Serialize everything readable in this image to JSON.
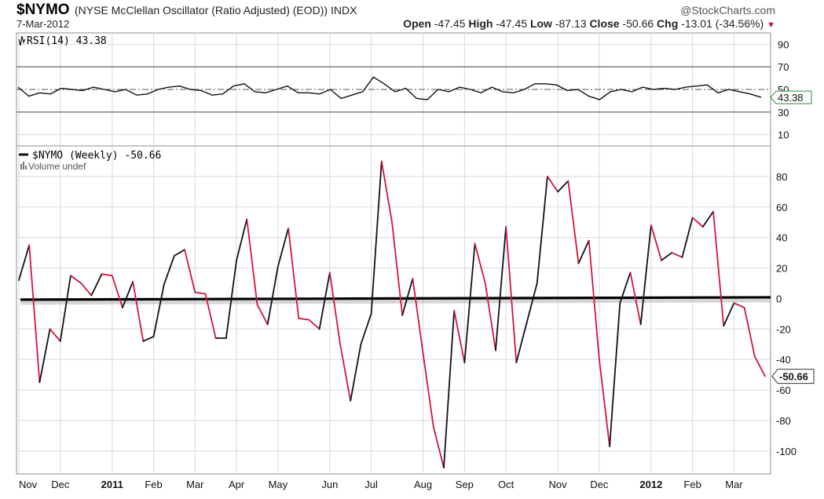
{
  "header": {
    "symbol": "$NYMO",
    "description": "(NYSE McClellan Oscillator (Ratio Adjusted) (EOD))",
    "exchange": "INDX",
    "source": "@StockCharts.com",
    "date": "7-Mar-2012",
    "open_label": "Open",
    "open": "-47.45",
    "high_label": "High",
    "high": "-47.45",
    "low_label": "Low",
    "low": "-87.13",
    "close_label": "Close",
    "close": "-50.66",
    "chg_label": "Chg",
    "chg": "-13.01 (-34.56%)",
    "chg_arrow": "▼"
  },
  "colors": {
    "up": "#111111",
    "down": "#d4143c",
    "grid": "#d8d8d8",
    "zero_line": "#000000",
    "rsi_line": "#111111",
    "rsi_bound": "#777777",
    "rsi_mid": "#555555",
    "last_value_tag": "#2e8b3a"
  },
  "chart_data": [
    {
      "type": "line",
      "panel": "RSI",
      "legend": "RSI(14) 43.38",
      "last_value_label": "43.38",
      "ylim": [
        0,
        100
      ],
      "yticks": [
        10,
        30,
        50,
        70,
        90
      ],
      "tick_labels": [
        "10",
        "30",
        "50",
        "70",
        "90"
      ],
      "bands": [
        30,
        50,
        70
      ],
      "values": [
        52,
        44,
        47,
        46,
        51,
        50,
        49,
        52,
        50,
        48,
        50,
        45,
        46,
        50,
        52,
        53,
        50,
        49,
        45,
        46,
        53,
        55,
        48,
        47,
        50,
        53,
        47,
        47,
        46,
        50,
        42,
        45,
        48,
        61,
        55,
        48,
        51,
        42,
        41,
        50,
        48,
        52,
        50,
        47,
        52,
        48,
        47,
        50,
        55,
        55,
        54,
        49,
        50,
        44,
        41,
        48,
        50,
        48,
        52,
        50,
        51,
        50,
        52,
        53,
        54,
        47,
        50,
        48,
        46,
        43
      ]
    },
    {
      "type": "line",
      "panel": "NYMO",
      "legend": "$NYMO (Weekly) -50.66",
      "volume_legend": "Volume undef",
      "last_value_label": "-50.66",
      "ylim": [
        -115,
        100
      ],
      "yticks": [
        -100,
        -80,
        -60,
        -40,
        -20,
        0,
        20,
        40,
        60,
        80
      ],
      "tick_labels": [
        "-100",
        "-80",
        "-60",
        "-40",
        "-20",
        "0",
        "20",
        "40",
        "60",
        "80"
      ],
      "values": [
        12,
        35,
        -55,
        -20,
        -28,
        15,
        10,
        2,
        16,
        15,
        -6,
        11,
        -28,
        -25,
        9,
        28,
        32,
        4,
        3,
        -26,
        -26,
        25,
        52,
        -4,
        -17,
        21,
        46,
        -13,
        -14,
        -20,
        17,
        -30,
        -67,
        -30,
        -10,
        90,
        50,
        -11,
        13,
        -36,
        -84,
        -111,
        -8,
        -42,
        36,
        10,
        -34,
        47,
        -42,
        -16,
        10,
        80,
        70,
        77,
        23,
        38,
        -40,
        -97,
        -3,
        17,
        -17,
        48,
        25,
        30,
        27,
        53,
        47,
        57,
        -18,
        -3,
        -6,
        -38,
        -51
      ],
      "x_tick_labels": [
        "Nov",
        "Dec",
        "2011",
        "Feb",
        "Mar",
        "Apr",
        "May",
        "Jun",
        "Jul",
        "Aug",
        "Sep",
        "Oct",
        "Nov",
        "Dec",
        "2012",
        "Feb",
        "Mar"
      ],
      "x_tick_bold": [
        false,
        false,
        true,
        false,
        false,
        false,
        false,
        false,
        false,
        false,
        false,
        false,
        false,
        false,
        true,
        false,
        false
      ],
      "x_tick_index": [
        0,
        4,
        9,
        13,
        17,
        21,
        25,
        30,
        34,
        39,
        43,
        47,
        52,
        56,
        61,
        65,
        69
      ]
    }
  ]
}
